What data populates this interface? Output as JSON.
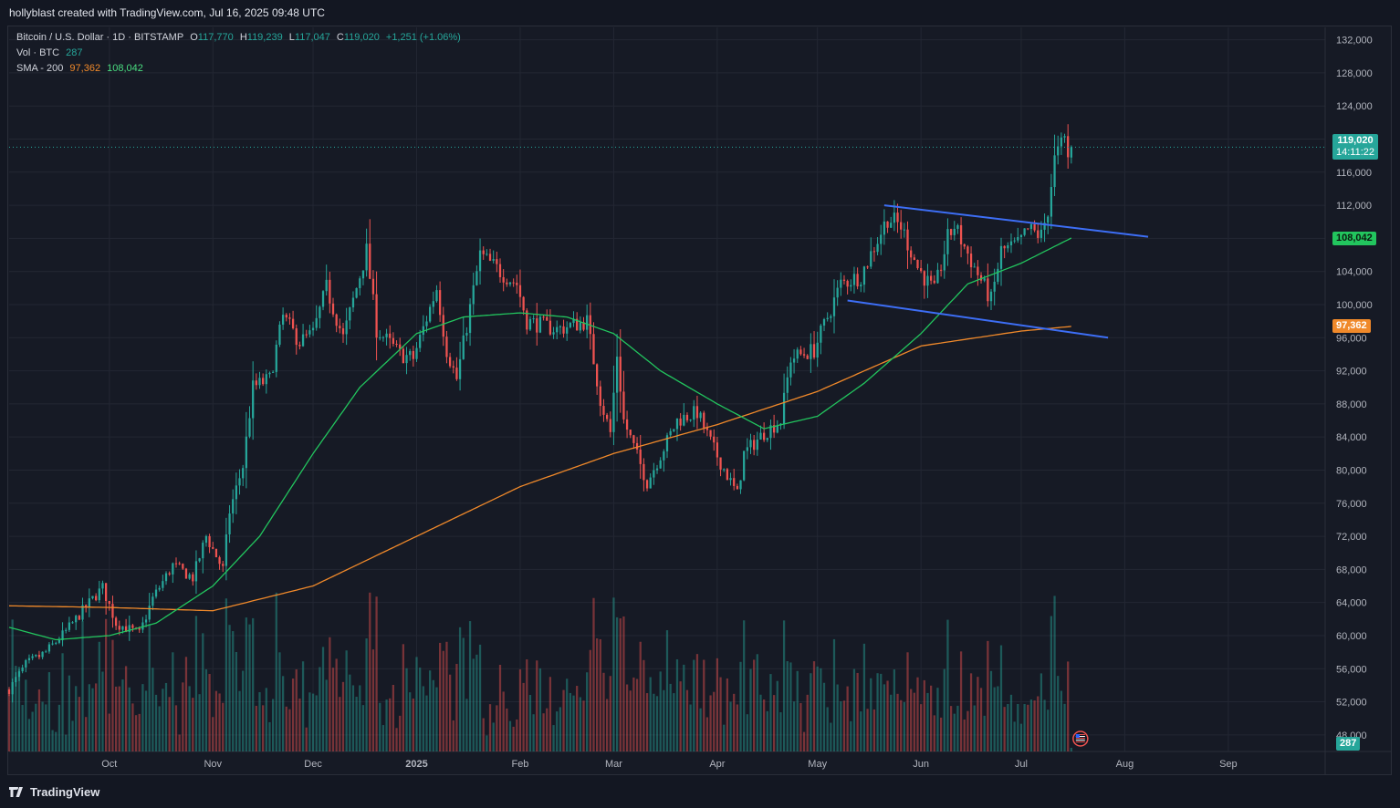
{
  "header": {
    "credit": "hollyblast created with TradingView.com, Jul 16, 2025 09:48 UTC"
  },
  "legend": {
    "symbol": "Bitcoin / U.S. Dollar · 1D · BITSTAMP",
    "open_label": "O",
    "open": "117,770",
    "high_label": "H",
    "high": "119,239",
    "low_label": "L",
    "low": "117,047",
    "close_label": "C",
    "close": "119,020",
    "change": "+1,251 (+1.06%)",
    "vol_label": "Vol · BTC",
    "vol_value": "287",
    "sma_label": "SMA - 200",
    "sma_value_1": "97,362",
    "sma_value_2": "108,042"
  },
  "price_tags": {
    "last_price": "119,020",
    "countdown": "14:11:22",
    "sma50": "108,042",
    "sma200": "97,362",
    "volume": "287"
  },
  "footer": {
    "brand": "TradingView"
  },
  "colors": {
    "up": "#26a69a",
    "down": "#ef5350",
    "sma50": "#22c55e",
    "sma200": "#f0892a",
    "trendline": "#3d6ef5",
    "background": "#161a25",
    "grid": "#232733"
  },
  "chart_data": {
    "type": "candlestick",
    "symbol": "BTCUSD",
    "timeframe": "1D",
    "y_axis": {
      "ticks": [
        48000,
        52000,
        56000,
        60000,
        64000,
        68000,
        72000,
        76000,
        80000,
        84000,
        88000,
        92000,
        96000,
        100000,
        104000,
        108000,
        112000,
        116000,
        120000,
        124000,
        128000,
        132000
      ],
      "tick_labels": [
        "48,000",
        "52,000",
        "56,000",
        "60,000",
        "64,000",
        "68,000",
        "72,000",
        "76,000",
        "80,000",
        "84,000",
        "88,000",
        "92,000",
        "96,000",
        "100,000",
        "104,000",
        "108,000",
        "112,000",
        "116,000",
        "120,000",
        "124,000",
        "128,000",
        "132,000"
      ],
      "range": [
        46000,
        133500
      ]
    },
    "x_axis": {
      "labels": [
        "Oct",
        "Nov",
        "Dec",
        "2025",
        "Feb",
        "Mar",
        "Apr",
        "May",
        "Jun",
        "Jul",
        "Aug",
        "Sep"
      ],
      "dates": [
        "2024-10-01",
        "2024-11-01",
        "2024-12-01",
        "2025-01-01",
        "2025-02-01",
        "2025-03-01",
        "2025-04-01",
        "2025-05-01",
        "2025-06-01",
        "2025-07-01",
        "2025-08-01",
        "2025-09-01"
      ],
      "range": [
        "2024-09-01",
        "2025-09-30"
      ]
    },
    "price_anchors": [
      [
        "2024-09-01",
        53500
      ],
      [
        "2024-09-06",
        56500
      ],
      [
        "2024-09-12",
        58000
      ],
      [
        "2024-09-18",
        60500
      ],
      [
        "2024-09-24",
        63500
      ],
      [
        "2024-09-29",
        65800
      ],
      [
        "2024-10-03",
        61500
      ],
      [
        "2024-10-10",
        60200
      ],
      [
        "2024-10-14",
        64500
      ],
      [
        "2024-10-20",
        68500
      ],
      [
        "2024-10-26",
        67000
      ],
      [
        "2024-10-30",
        72000
      ],
      [
        "2024-11-04",
        68000
      ],
      [
        "2024-11-06",
        75000
      ],
      [
        "2024-11-10",
        80500
      ],
      [
        "2024-11-13",
        90000
      ],
      [
        "2024-11-18",
        91000
      ],
      [
        "2024-11-22",
        98500
      ],
      [
        "2024-11-27",
        95500
      ],
      [
        "2024-12-01",
        96500
      ],
      [
        "2024-12-05",
        102000
      ],
      [
        "2024-12-10",
        96000
      ],
      [
        "2024-12-17",
        106500
      ],
      [
        "2024-12-20",
        97000
      ],
      [
        "2024-12-27",
        94000
      ],
      [
        "2024-12-31",
        93500
      ],
      [
        "2025-01-07",
        102000
      ],
      [
        "2025-01-10",
        94500
      ],
      [
        "2025-01-13",
        91000
      ],
      [
        "2025-01-20",
        106000
      ],
      [
        "2025-01-26",
        104000
      ],
      [
        "2025-01-31",
        102500
      ],
      [
        "2025-02-03",
        98000
      ],
      [
        "2025-02-12",
        97000
      ],
      [
        "2025-02-21",
        98000
      ],
      [
        "2025-02-25",
        88500
      ],
      [
        "2025-02-28",
        84500
      ],
      [
        "2025-03-02",
        94000
      ],
      [
        "2025-03-04",
        86000
      ],
      [
        "2025-03-11",
        78500
      ],
      [
        "2025-03-20",
        86000
      ],
      [
        "2025-03-26",
        87000
      ],
      [
        "2025-03-31",
        82500
      ],
      [
        "2025-04-07",
        77000
      ],
      [
        "2025-04-09",
        82000
      ],
      [
        "2025-04-15",
        84500
      ],
      [
        "2025-04-20",
        86000
      ],
      [
        "2025-04-23",
        93500
      ],
      [
        "2025-04-30",
        94500
      ],
      [
        "2025-05-08",
        102500
      ],
      [
        "2025-05-14",
        103500
      ],
      [
        "2025-05-22",
        110500
      ],
      [
        "2025-05-26",
        109500
      ],
      [
        "2025-05-31",
        104500
      ],
      [
        "2025-06-05",
        101500
      ],
      [
        "2025-06-09",
        108000
      ],
      [
        "2025-06-11",
        109500
      ],
      [
        "2025-06-17",
        104500
      ],
      [
        "2025-06-22",
        100500
      ],
      [
        "2025-06-25",
        106500
      ],
      [
        "2025-06-30",
        107200
      ],
      [
        "2025-07-03",
        109000
      ],
      [
        "2025-07-07",
        108300
      ],
      [
        "2025-07-09",
        111500
      ],
      [
        "2025-07-11",
        117500
      ],
      [
        "2025-07-13",
        119200
      ],
      [
        "2025-07-14",
        119800
      ],
      [
        "2025-07-15",
        117770
      ],
      [
        "2025-07-16",
        119020
      ]
    ],
    "sma_50_anchors": [
      [
        "2024-09-01",
        61000
      ],
      [
        "2024-09-15",
        59500
      ],
      [
        "2024-10-01",
        60000
      ],
      [
        "2024-10-15",
        61500
      ],
      [
        "2024-11-01",
        66000
      ],
      [
        "2024-11-15",
        72000
      ],
      [
        "2024-12-01",
        82000
      ],
      [
        "2024-12-15",
        90000
      ],
      [
        "2025-01-01",
        96500
      ],
      [
        "2025-01-15",
        98500
      ],
      [
        "2025-02-01",
        99000
      ],
      [
        "2025-02-15",
        98500
      ],
      [
        "2025-03-01",
        96500
      ],
      [
        "2025-03-15",
        92000
      ],
      [
        "2025-04-01",
        88000
      ],
      [
        "2025-04-15",
        85000
      ],
      [
        "2025-05-01",
        86500
      ],
      [
        "2025-05-15",
        90500
      ],
      [
        "2025-06-01",
        96500
      ],
      [
        "2025-06-15",
        102500
      ],
      [
        "2025-07-01",
        105000
      ],
      [
        "2025-07-16",
        108042
      ]
    ],
    "sma_200_anchors": [
      [
        "2024-09-01",
        63600
      ],
      [
        "2024-10-01",
        63400
      ],
      [
        "2024-11-01",
        63000
      ],
      [
        "2024-12-01",
        66000
      ],
      [
        "2025-01-01",
        72000
      ],
      [
        "2025-02-01",
        78000
      ],
      [
        "2025-03-01",
        82000
      ],
      [
        "2025-04-01",
        85500
      ],
      [
        "2025-05-01",
        89500
      ],
      [
        "2025-06-01",
        95000
      ],
      [
        "2025-07-01",
        96800
      ],
      [
        "2025-07-16",
        97362
      ]
    ],
    "trendlines": [
      {
        "points": [
          [
            "2025-05-21",
            112000
          ],
          [
            "2025-08-08",
            108200
          ]
        ]
      },
      {
        "points": [
          [
            "2025-05-10",
            100500
          ],
          [
            "2025-07-27",
            96000
          ]
        ]
      }
    ],
    "last_price": 119020,
    "sma_50": 108042,
    "sma_200": 97362,
    "volume_last": 287
  }
}
